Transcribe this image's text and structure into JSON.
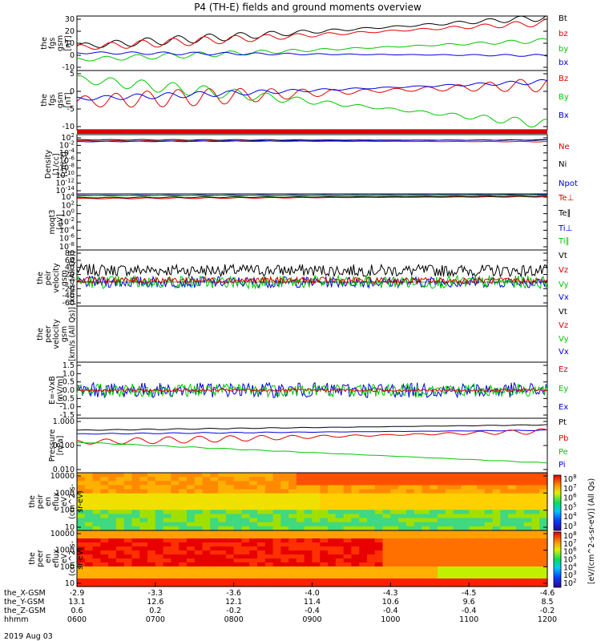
{
  "chart_data": {
    "type": "line",
    "title": "P4 (TH-E) fields and ground moments overview",
    "date_label": "2019 Aug 03",
    "panels": [
      {
        "id": "fgs_gsm_a",
        "ylabel": [
          "the",
          "fgs",
          "gsm",
          "[nT]"
        ],
        "ticks": [
          "30",
          "20",
          "10",
          "0",
          "-10"
        ],
        "yrange": [
          -10,
          30
        ],
        "legend": [
          {
            "name": "Bt",
            "color": "#000000"
          },
          {
            "name": "bz",
            "color": "#e00000"
          },
          {
            "name": "by",
            "color": "#00c800"
          },
          {
            "name": "bx",
            "color": "#0000e0"
          }
        ]
      },
      {
        "id": "fgs_gsm_b",
        "ylabel": [
          "the",
          "fgs",
          "gsm",
          "[nT]"
        ],
        "ticks": [
          "5",
          "0",
          "-5",
          "-10"
        ],
        "yrange": [
          -13,
          8
        ],
        "legend": [
          {
            "name": "Bz",
            "color": "#e00000"
          },
          {
            "name": "By",
            "color": "#00c800"
          },
          {
            "name": "Bx",
            "color": "#0000e0"
          }
        ]
      },
      {
        "id": "density",
        "ylabel": [
          "Density",
          "[1/cc]",
          "[cm-3]"
        ],
        "ticks": [
          "10^2",
          "10^-2",
          "10^-4",
          "10^-6",
          "10^-8",
          "10^-10",
          "10^-12",
          "10^-14"
        ],
        "yrange": [
          -14,
          2
        ],
        "legend": [
          {
            "name": "Ne",
            "color": "#e00000"
          },
          {
            "name": "Ni",
            "color": "#000000"
          },
          {
            "name": "Npot",
            "color": "#0000e0"
          }
        ]
      },
      {
        "id": "temp",
        "ylabel": [
          "moqt3",
          "[eV]"
        ],
        "ticks": [
          "10^4",
          "10^2",
          "10^0",
          "10^-2",
          "10^-4",
          "10^-6",
          "10^-8"
        ],
        "yrange": [
          -8,
          4
        ],
        "legend": [
          {
            "name": "Te⊥",
            "color": "#e00000"
          },
          {
            "name": "Te∥",
            "color": "#000000"
          },
          {
            "name": "Ti⊥",
            "color": "#0000e0"
          },
          {
            "name": "Ti∥",
            "color": "#00c800"
          }
        ]
      },
      {
        "id": "peir_vel",
        "ylabel": [
          "the",
          "peir",
          "velocity",
          "gsm",
          "[km/s (All Qs)]"
        ],
        "ticks": [
          "80",
          "60",
          "40",
          "20",
          "0",
          "-20",
          "-40",
          "-60"
        ],
        "yrange": [
          -60,
          80
        ],
        "legend": [
          {
            "name": "Vt",
            "color": "#000000"
          },
          {
            "name": "Vz",
            "color": "#e00000"
          },
          {
            "name": "Vy",
            "color": "#00c800"
          },
          {
            "name": "Vx",
            "color": "#0000e0"
          }
        ]
      },
      {
        "id": "peer_vel",
        "ylabel": [
          "the",
          "peer",
          "velocity",
          "gsm",
          "[km/s (All Qs)]"
        ],
        "ticks": [],
        "yrange": [
          0,
          1
        ],
        "legend": [
          {
            "name": "Vt",
            "color": "#000000"
          },
          {
            "name": "Vz",
            "color": "#e00000"
          },
          {
            "name": "Vy",
            "color": "#00c800"
          },
          {
            "name": "Vx",
            "color": "#0000e0"
          }
        ]
      },
      {
        "id": "efield",
        "ylabel": [
          "E=-VxB",
          "[mV/m]"
        ],
        "ticks": [
          "1.5",
          "1.0",
          "0.5",
          "0.0",
          "-0.5",
          "-1.0",
          "-1.5"
        ],
        "yrange": [
          -1.5,
          1.5
        ],
        "legend": [
          {
            "name": "Ez",
            "color": "#e00000"
          },
          {
            "name": "Ey",
            "color": "#00c800"
          },
          {
            "name": "Ex",
            "color": "#0000e0"
          }
        ]
      },
      {
        "id": "pressure",
        "ylabel": [
          "Pressure",
          "[nPa]"
        ],
        "ticks": [
          "1.000",
          "0.100",
          "0.010"
        ],
        "yrange": [
          -2.5,
          0
        ],
        "legend": [
          {
            "name": "Pt",
            "color": "#000000"
          },
          {
            "name": "Pb",
            "color": "#e00000"
          },
          {
            "name": "Pe",
            "color": "#00c800"
          },
          {
            "name": "Pi",
            "color": "#0000e0"
          }
        ]
      },
      {
        "id": "peir_spec",
        "ylabel": [
          "the",
          "peir",
          "en",
          "eflux",
          "eV",
          "(cm^2-s-",
          "sr-eV)"
        ],
        "ticks": [
          "10000",
          "1000",
          "100",
          "10"
        ],
        "yrange": [
          0.7,
          4.3
        ]
      },
      {
        "id": "peer_spec",
        "ylabel": [
          "the",
          "peer",
          "en",
          "eflux",
          "eV",
          "(cm^2-s-",
          "sr-eV)"
        ],
        "ticks": [
          "10000",
          "1000",
          "100",
          "10"
        ],
        "yrange": [
          0.7,
          4.3
        ]
      }
    ],
    "colorbar": {
      "label": "[eV/(cm^2-s-sr-eV)] (All Qs)",
      "upper_ticks": [
        "10^8",
        "10^7",
        "10^6",
        "10^5",
        "10^4",
        "10^3"
      ],
      "lower_ticks": [
        "10^8",
        "10^7",
        "10^6",
        "10^5",
        "10^4",
        "10^3",
        "10^2"
      ]
    },
    "x_axis": {
      "rows": [
        {
          "label": "the_X-GSM",
          "values": [
            "-2.9",
            "-3.3",
            "-3.6",
            "-4.0",
            "-4.3",
            "-4.5",
            "-4.6"
          ]
        },
        {
          "label": "the_Y-GSM",
          "values": [
            "13.1",
            "12.6",
            "12.1",
            "11.4",
            "10.6",
            "9.6",
            "8.5"
          ]
        },
        {
          "label": "the_Z-GSM",
          "values": [
            "0.6",
            "0.2",
            "-0.2",
            "-0.4",
            "-0.4",
            "-0.4",
            "-0.2"
          ]
        },
        {
          "label": "hhmm",
          "values": [
            "0600",
            "0700",
            "0800",
            "0900",
            "1000",
            "1100",
            "1200"
          ]
        }
      ]
    },
    "series": [
      {
        "name": "Bt",
        "panel": "fgs_gsm_a",
        "color": "#000000",
        "start": 8,
        "end": 29,
        "osc": 3
      },
      {
        "name": "bz",
        "panel": "fgs_gsm_a",
        "color": "#e00000",
        "start": 7,
        "end": 25,
        "osc": 3
      },
      {
        "name": "by",
        "panel": "fgs_gsm_a",
        "color": "#00c800",
        "start": -2,
        "end": 12,
        "osc": 2
      },
      {
        "name": "bx",
        "panel": "fgs_gsm_a",
        "color": "#0000e0",
        "start": 3,
        "end": 1,
        "osc": 1
      },
      {
        "name": "Bz",
        "panel": "fgs_gsm_b",
        "color": "#e00000",
        "start": -3,
        "end": 3,
        "osc": 3
      },
      {
        "name": "By",
        "panel": "fgs_gsm_b",
        "color": "#00c800",
        "start": 5,
        "end": -11,
        "osc": 2
      },
      {
        "name": "Bx",
        "panel": "fgs_gsm_b",
        "color": "#0000e0",
        "start": -2,
        "end": 4,
        "osc": 1
      },
      {
        "name": "Ne",
        "panel": "density",
        "color": "#e00000",
        "start": 0.3,
        "end": 0.1,
        "osc": 0.1
      },
      {
        "name": "Ni",
        "panel": "density",
        "color": "#000000",
        "start": 0.6,
        "end": 0.5,
        "osc": 0.1
      },
      {
        "name": "Npot",
        "panel": "density",
        "color": "#0000e0",
        "start": 0.1,
        "end": 0.6,
        "osc": 0.1
      },
      {
        "name": "Te⊥",
        "panel": "temp",
        "color": "#e00000",
        "start": 3.0,
        "end": 3.4,
        "osc": 0.1
      },
      {
        "name": "Te∥",
        "panel": "temp",
        "color": "#000000",
        "start": 3.2,
        "end": 3.5,
        "osc": 0.1
      },
      {
        "name": "Ti⊥",
        "panel": "temp",
        "color": "#0000e0",
        "start": 3.7,
        "end": 3.8,
        "osc": 0.05
      },
      {
        "name": "Ti∥",
        "panel": "temp",
        "color": "#00c800",
        "start": 3.6,
        "end": 3.7,
        "osc": 0.05
      },
      {
        "name": "Vt",
        "panel": "peir_vel",
        "color": "#000000",
        "start": 30,
        "end": 28,
        "osc": 15
      },
      {
        "name": "Vx",
        "panel": "peir_vel",
        "color": "#0000e0",
        "start": 0,
        "end": 0,
        "osc": 14
      },
      {
        "name": "Vy",
        "panel": "peir_vel",
        "color": "#00c800",
        "start": 0,
        "end": 0,
        "osc": 16
      },
      {
        "name": "Vz",
        "panel": "peir_vel",
        "color": "#e00000",
        "start": 5,
        "end": 3,
        "osc": 8
      },
      {
        "name": "Ex",
        "panel": "efield",
        "color": "#0000e0",
        "start": 0,
        "end": 0,
        "osc": 0.4
      },
      {
        "name": "Ey",
        "panel": "efield",
        "color": "#00c800",
        "start": 0,
        "end": 0,
        "osc": 0.35
      },
      {
        "name": "Ez",
        "panel": "efield",
        "color": "#e00000",
        "start": 0,
        "end": 0,
        "osc": 0.08
      },
      {
        "name": "Pt",
        "panel": "pressure",
        "color": "#000000",
        "start": -0.55,
        "end": -0.3,
        "osc": 0.02
      },
      {
        "name": "Pi",
        "panel": "pressure",
        "color": "#0000e0",
        "start": -0.72,
        "end": -0.55,
        "osc": 0.02
      },
      {
        "name": "Pb",
        "panel": "pressure",
        "color": "#e00000",
        "start": -1.1,
        "end": -0.6,
        "osc": 0.15
      },
      {
        "name": "Pe",
        "panel": "pressure",
        "color": "#00c800",
        "start": -1.1,
        "end": -2.05,
        "osc": 0.02
      }
    ]
  }
}
